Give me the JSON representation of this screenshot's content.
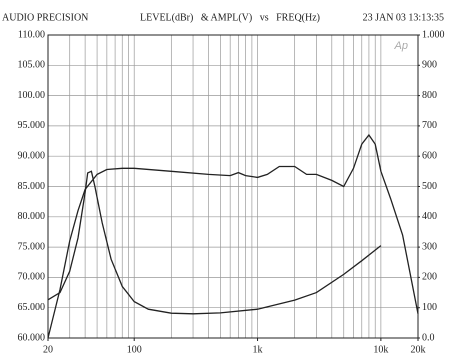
{
  "chart_data": {
    "type": "line",
    "title": "LEVEL(dBr)   & AMPL(V)   vs   FREQ(Hz)",
    "header_left": "AUDIO PRECISION",
    "header_right": "23 JAN 03 13:13:35",
    "logo": "Ap",
    "xlog": true,
    "grid": true,
    "xlim": [
      20,
      20000
    ],
    "xticks": [
      20,
      100,
      {
        "value": 1000,
        "label": "1k"
      },
      {
        "value": 10000,
        "label": "10k"
      },
      {
        "value": 20000,
        "label": "20k"
      }
    ],
    "ylim": [
      60,
      110
    ],
    "yticks": [
      {
        "value": 110,
        "label": "110.00"
      },
      {
        "value": 105,
        "label": "105.00"
      },
      {
        "value": 100,
        "label": "100.00"
      },
      {
        "value": 95,
        "label": "95.000"
      },
      {
        "value": 90,
        "label": "90.000"
      },
      {
        "value": 85,
        "label": "85.000"
      },
      {
        "value": 80,
        "label": "80.000"
      },
      {
        "value": 75,
        "label": "75.000"
      },
      {
        "value": 70,
        "label": "70.000"
      },
      {
        "value": 65,
        "label": "65.000"
      },
      {
        "value": 60,
        "label": "60.000"
      }
    ],
    "y2lim": [
      0,
      1000
    ],
    "y2ticks": [
      {
        "value": 1000,
        "label": "1.000"
      },
      900,
      800,
      700,
      600,
      500,
      400,
      300,
      200,
      100,
      {
        "value": 0,
        "label": "0.0"
      }
    ],
    "series": [
      {
        "color": "#222222",
        "x": [
          20,
          25,
          30,
          35,
          40,
          50,
          60,
          80,
          100,
          200,
          400,
          600,
          700,
          800,
          1000,
          1200,
          1500,
          2000,
          2500,
          3000,
          4000,
          5000,
          6000,
          7000,
          8000,
          9000,
          10000,
          12000,
          15000,
          20000
        ],
        "values": [
          60,
          68,
          76,
          81,
          84.5,
          87,
          87.8,
          88,
          88,
          87.5,
          87,
          86.8,
          87.3,
          86.8,
          86.5,
          87,
          88.3,
          88.3,
          87,
          87,
          86,
          85,
          88,
          92,
          93.5,
          92,
          87.5,
          83,
          77,
          64
        ]
      },
      {
        "color": "#222222",
        "axis": "y2",
        "x": [
          20,
          25,
          30,
          35,
          40,
          42,
          45,
          48,
          55,
          65,
          80,
          100,
          130,
          200,
          300,
          500,
          1000,
          2000,
          3000,
          5000,
          7000,
          10000
        ],
        "values": [
          126,
          150,
          220,
          330,
          480,
          545,
          550,
          500,
          380,
          260,
          170,
          120,
          95,
          82,
          80,
          83,
          95,
          125,
          150,
          210,
          255,
          305
        ]
      }
    ]
  }
}
